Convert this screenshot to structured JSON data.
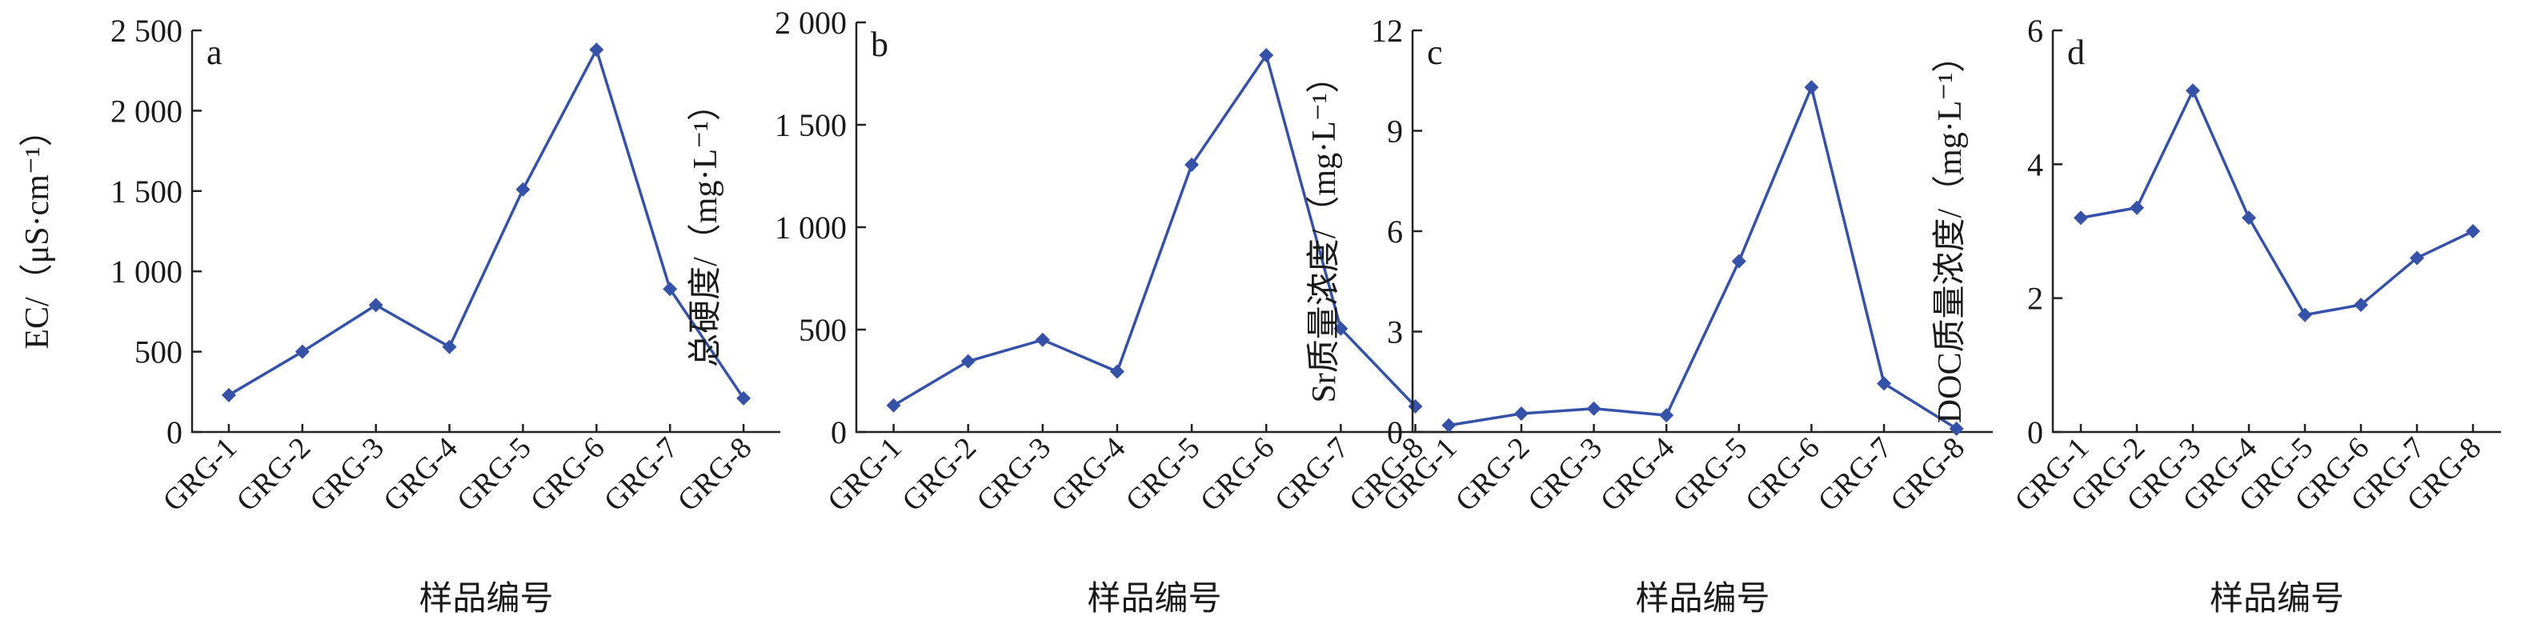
{
  "colors": {
    "series": "#3652a8",
    "axis": "#222222"
  },
  "chart_data": [
    {
      "type": "line",
      "panel_label": "a",
      "categories": [
        "GRG-1",
        "GRG-2",
        "GRG-3",
        "GRG-4",
        "GRG-5",
        "GRG-6",
        "GRG-7",
        "GRG-8"
      ],
      "values": [
        230,
        500,
        790,
        530,
        1510,
        2380,
        890,
        210
      ],
      "ylim": [
        0,
        2500
      ],
      "yticks": [
        0,
        500,
        1000,
        1500,
        2000,
        2500
      ],
      "ytick_labels": [
        "0",
        "500",
        "1 000",
        "1 500",
        "2 000",
        "2 500"
      ],
      "ylabel": "EC/（μS·cm⁻¹）",
      "xlabel": "样品编号",
      "grid": false,
      "marker": "diamond"
    },
    {
      "type": "line",
      "panel_label": "b",
      "categories": [
        "GRG-1",
        "GRG-2",
        "GRG-3",
        "GRG-4",
        "GRG-5",
        "GRG-6",
        "GRG-7",
        "GRG-8"
      ],
      "values": [
        130,
        345,
        450,
        295,
        1305,
        1840,
        505,
        125
      ],
      "ylim": [
        0,
        2000
      ],
      "yticks": [
        0,
        500,
        1000,
        1500,
        2000
      ],
      "ytick_labels": [
        "0",
        "500",
        "1 000",
        "1 500",
        "2 000"
      ],
      "ylabel": "总硬度/（mg·L⁻¹）",
      "xlabel": "样品编号",
      "grid": false,
      "marker": "diamond"
    },
    {
      "type": "line",
      "panel_label": "c",
      "categories": [
        "GRG-1",
        "GRG-2",
        "GRG-3",
        "GRG-4",
        "GRG-5",
        "GRG-6",
        "GRG-7",
        "GRG-8"
      ],
      "values": [
        0.2,
        0.55,
        0.7,
        0.5,
        5.1,
        10.3,
        1.45,
        0.1
      ],
      "ylim": [
        0,
        12
      ],
      "yticks": [
        0,
        3,
        6,
        9,
        12
      ],
      "ytick_labels": [
        "0",
        "3",
        "6",
        "9",
        "12"
      ],
      "ylabel": "Sr质量浓度/（mg·L⁻¹）",
      "xlabel": "样品编号",
      "grid": false,
      "marker": "diamond"
    },
    {
      "type": "line",
      "panel_label": "d",
      "categories": [
        "GRG-1",
        "GRG-2",
        "GRG-3",
        "GRG-4",
        "GRG-5",
        "GRG-6",
        "GRG-7",
        "GRG-8"
      ],
      "values": [
        3.2,
        3.35,
        5.1,
        3.2,
        1.75,
        1.9,
        2.6,
        3.0
      ],
      "ylim": [
        0,
        6
      ],
      "yticks": [
        0,
        2,
        4,
        6
      ],
      "ytick_labels": [
        "0",
        "2",
        "4",
        "6"
      ],
      "ylabel": "DOC质量浓度/（mg·L⁻¹）",
      "xlabel": "样品编号",
      "grid": false,
      "marker": "diamond"
    }
  ]
}
